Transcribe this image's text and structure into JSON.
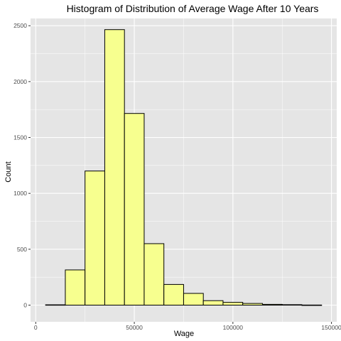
{
  "chart_data": {
    "type": "bar",
    "title": "Histogram of Distribution of Average Wage After 10 Years",
    "xlabel": "Wage",
    "ylabel": "Count",
    "xlim": [
      0,
      150000
    ],
    "ylim": [
      0,
      2500
    ],
    "x_ticks": [
      0,
      50000,
      100000,
      150000
    ],
    "y_ticks": [
      0,
      500,
      1000,
      1500,
      2000,
      2500
    ],
    "bin_width": 10000,
    "bins": [
      {
        "x0": 5000,
        "x1": 15000,
        "count": 3
      },
      {
        "x0": 15000,
        "x1": 25000,
        "count": 315
      },
      {
        "x0": 25000,
        "x1": 35000,
        "count": 1200
      },
      {
        "x0": 35000,
        "x1": 45000,
        "count": 2465
      },
      {
        "x0": 45000,
        "x1": 55000,
        "count": 1715
      },
      {
        "x0": 55000,
        "x1": 65000,
        "count": 550
      },
      {
        "x0": 65000,
        "x1": 75000,
        "count": 185
      },
      {
        "x0": 75000,
        "x1": 85000,
        "count": 105
      },
      {
        "x0": 85000,
        "x1": 95000,
        "count": 40
      },
      {
        "x0": 95000,
        "x1": 105000,
        "count": 25
      },
      {
        "x0": 105000,
        "x1": 115000,
        "count": 15
      },
      {
        "x0": 115000,
        "x1": 125000,
        "count": 7
      },
      {
        "x0": 125000,
        "x1": 135000,
        "count": 4
      },
      {
        "x0": 135000,
        "x1": 145000,
        "count": 1
      }
    ],
    "bar_fill": "#f7ff8f",
    "bar_stroke": "#000000",
    "panel_background": "#e5e5e5",
    "grid_color": "#ffffff",
    "grid": true
  }
}
